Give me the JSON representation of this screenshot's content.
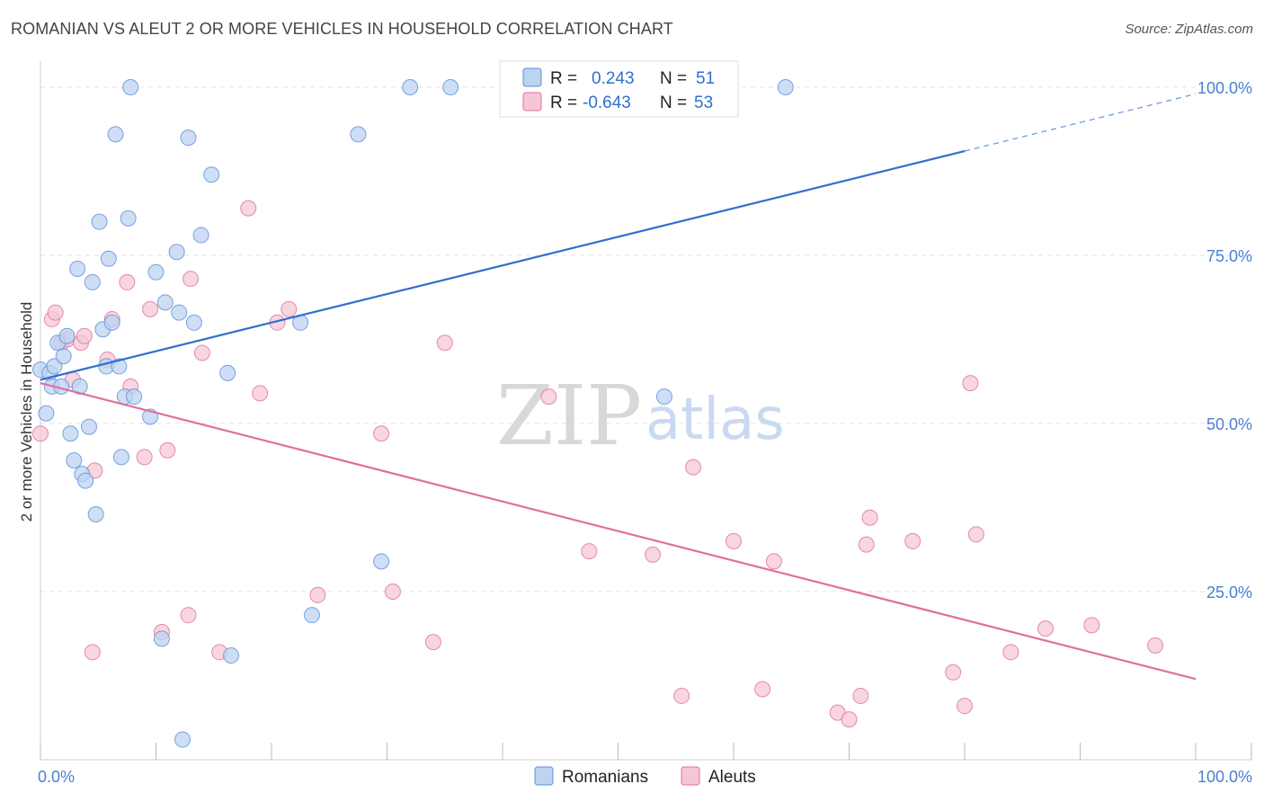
{
  "title": "ROMANIAN VS ALEUT 2 OR MORE VEHICLES IN HOUSEHOLD CORRELATION CHART",
  "source": "Source: ZipAtlas.com",
  "watermark": {
    "zip": "ZIP",
    "atlas": "atlas"
  },
  "colors": {
    "blue": "#5b8fd8",
    "blue_fill": "#bcd3f2",
    "pink": "#e0709a",
    "pink_fill": "#f5c7d6",
    "grid": "#e3e3e3",
    "axis_text": "#4a7fd0"
  },
  "legend": {
    "rows": [
      {
        "r_label": "R =",
        "r_value": "0.243",
        "n_label": "N =",
        "n_value": "51"
      },
      {
        "r_label": "R =",
        "r_value": "-0.643",
        "n_label": "N =",
        "n_value": "53"
      }
    ]
  },
  "chart_data": {
    "type": "scatter",
    "title": "ROMANIAN VS ALEUT 2 OR MORE VEHICLES IN HOUSEHOLD CORRELATION CHART",
    "xlabel": "",
    "ylabel": "2 or more Vehicles in Household",
    "xlim": [
      0,
      100
    ],
    "ylim": [
      0,
      100
    ],
    "x_tick_labels": [
      "0.0%",
      "100.0%"
    ],
    "y_ticks": [
      25,
      50,
      75,
      100
    ],
    "y_tick_labels": [
      "25.0%",
      "50.0%",
      "75.0%",
      "100.0%"
    ],
    "series": [
      {
        "name": "Romanians",
        "r": 0.243,
        "n": 51,
        "trend": {
          "x0": 0,
          "y0": 56.5,
          "x1": 80,
          "y1": 90.5,
          "dash_to_x": 100,
          "dash_to_y": 99
        },
        "points": [
          [
            0,
            58.0
          ],
          [
            0.5,
            51.5
          ],
          [
            0.8,
            57.5
          ],
          [
            1.0,
            55.5
          ],
          [
            1.2,
            58.5
          ],
          [
            1.5,
            62.0
          ],
          [
            1.8,
            55.5
          ],
          [
            2.0,
            60.0
          ],
          [
            2.3,
            63.0
          ],
          [
            2.6,
            48.5
          ],
          [
            2.9,
            44.5
          ],
          [
            3.2,
            73.0
          ],
          [
            3.4,
            55.5
          ],
          [
            3.6,
            42.5
          ],
          [
            3.9,
            41.5
          ],
          [
            4.2,
            49.5
          ],
          [
            4.5,
            71.0
          ],
          [
            4.8,
            36.5
          ],
          [
            5.1,
            80.0
          ],
          [
            5.4,
            64.0
          ],
          [
            5.7,
            58.5
          ],
          [
            5.9,
            74.5
          ],
          [
            6.2,
            65.0
          ],
          [
            6.5,
            93.0
          ],
          [
            6.8,
            58.5
          ],
          [
            7.0,
            45.0
          ],
          [
            7.3,
            54.0
          ],
          [
            7.6,
            80.5
          ],
          [
            7.8,
            100.0
          ],
          [
            8.1,
            54.0
          ],
          [
            9.5,
            51.0
          ],
          [
            10.0,
            72.5
          ],
          [
            10.5,
            18.0
          ],
          [
            10.8,
            68.0
          ],
          [
            11.8,
            75.5
          ],
          [
            12.0,
            66.5
          ],
          [
            12.3,
            3.0
          ],
          [
            12.8,
            92.5
          ],
          [
            13.3,
            65.0
          ],
          [
            13.9,
            78.0
          ],
          [
            14.8,
            87.0
          ],
          [
            16.5,
            15.5
          ],
          [
            16.2,
            57.5
          ],
          [
            22.5,
            65.0
          ],
          [
            23.5,
            21.5
          ],
          [
            27.5,
            93.0
          ],
          [
            29.5,
            29.5
          ],
          [
            32.0,
            100.0
          ],
          [
            35.5,
            100.0
          ],
          [
            54.0,
            54.0
          ],
          [
            64.5,
            100.0
          ]
        ]
      },
      {
        "name": "Aleuts",
        "r": -0.643,
        "n": 53,
        "trend": {
          "x0": 0,
          "y0": 56.0,
          "x1": 100,
          "y1": 12.0
        },
        "points": [
          [
            0,
            48.5
          ],
          [
            1.0,
            65.5
          ],
          [
            1.3,
            66.5
          ],
          [
            1.8,
            62.0
          ],
          [
            2.3,
            62.5
          ],
          [
            2.8,
            56.5
          ],
          [
            3.5,
            62.0
          ],
          [
            3.8,
            63.0
          ],
          [
            4.5,
            16.0
          ],
          [
            4.7,
            43.0
          ],
          [
            5.8,
            59.5
          ],
          [
            6.2,
            65.5
          ],
          [
            7.5,
            71.0
          ],
          [
            7.8,
            55.5
          ],
          [
            9.0,
            45.0
          ],
          [
            9.5,
            67.0
          ],
          [
            10.5,
            19.0
          ],
          [
            11.0,
            46.0
          ],
          [
            12.8,
            21.5
          ],
          [
            13.0,
            71.5
          ],
          [
            14.0,
            60.5
          ],
          [
            15.5,
            16.0
          ],
          [
            18.0,
            82.0
          ],
          [
            19.0,
            54.5
          ],
          [
            20.5,
            65.0
          ],
          [
            21.5,
            67.0
          ],
          [
            24.0,
            24.5
          ],
          [
            29.5,
            48.5
          ],
          [
            30.5,
            25.0
          ],
          [
            34.0,
            17.5
          ],
          [
            35.0,
            62.0
          ],
          [
            44.0,
            54.0
          ],
          [
            47.5,
            31.0
          ],
          [
            53.0,
            30.5
          ],
          [
            55.5,
            9.5
          ],
          [
            56.5,
            43.5
          ],
          [
            60.0,
            32.5
          ],
          [
            62.5,
            10.5
          ],
          [
            63.5,
            29.5
          ],
          [
            69.0,
            7.0
          ],
          [
            70.0,
            6.0
          ],
          [
            71.0,
            9.5
          ],
          [
            71.5,
            32.0
          ],
          [
            71.8,
            36.0
          ],
          [
            75.5,
            32.5
          ],
          [
            79.0,
            13.0
          ],
          [
            80.0,
            8.0
          ],
          [
            80.5,
            56.0
          ],
          [
            81.0,
            33.5
          ],
          [
            84.0,
            16.0
          ],
          [
            87.0,
            19.5
          ],
          [
            91.0,
            20.0
          ],
          [
            96.5,
            17.0
          ]
        ]
      }
    ]
  },
  "bottom_legend": {
    "items": [
      {
        "label": "Romanians"
      },
      {
        "label": "Aleuts"
      }
    ]
  }
}
